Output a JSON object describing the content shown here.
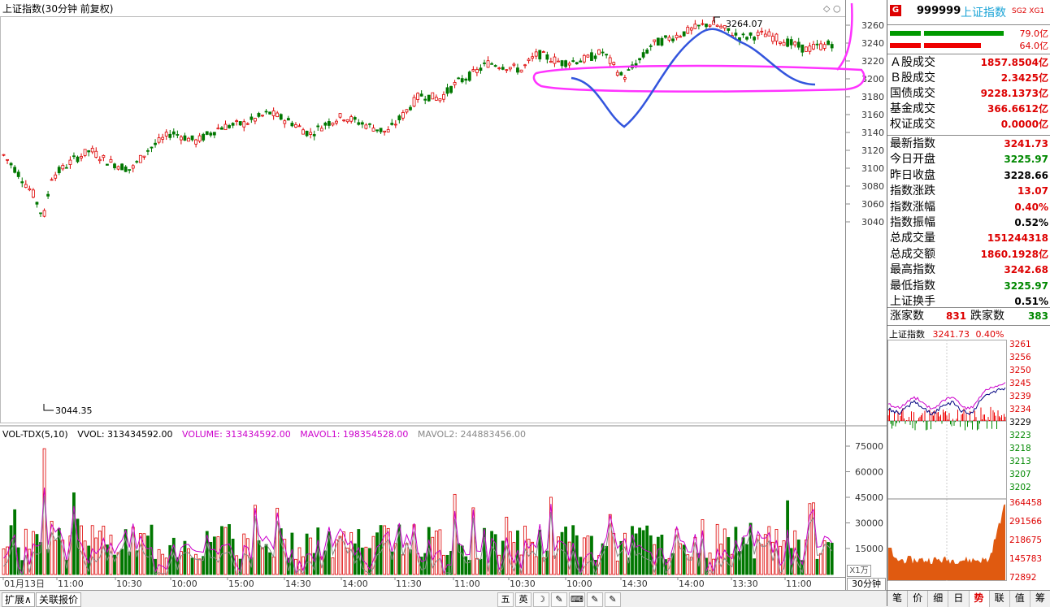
{
  "chart_title": "上证指数(30分钟 前复权)",
  "price_axis": [
    "3260",
    "3240",
    "3220",
    "3200",
    "3180",
    "3160",
    "3140",
    "3120",
    "3100",
    "3080",
    "3060",
    "3040"
  ],
  "vol_axis": [
    "75000",
    "60000",
    "45000",
    "30000",
    "15000"
  ],
  "annotations": {
    "high": "3264.07",
    "low": "3044.35"
  },
  "vol_header": {
    "indicator": "VOL-TDX(5,10)",
    "vvol": "VVOL: 313434592.00",
    "volume": "VOLUME: 313434592.00",
    "mavol1": "MAVOL1: 198354528.00",
    "mavol2": "MAVOL2: 244883456.00"
  },
  "time_labels": [
    "01月13日",
    "11:00",
    "10:30",
    "10:00",
    "15:00",
    "14:30",
    "14:00",
    "11:30",
    "11:00",
    "10:30",
    "10:00",
    "14:30",
    "14:00",
    "13:30",
    "11:00"
  ],
  "scale_unit": "X1万",
  "period": "30分钟",
  "bottom_tabs": {
    "expand": "扩展∧",
    "related": "关联报价"
  },
  "toolbar_icons": [
    "五",
    "英",
    "☽",
    "✎",
    "⌨",
    "✎",
    "✎"
  ],
  "quote": {
    "badge": "G",
    "code": "999999",
    "name": "上证指数",
    "sg": "SG2",
    "xg": "XG1",
    "bar_up_value": "79.0亿",
    "bar_down_value": "64.0亿",
    "volume_rows": [
      {
        "label": "Ａ股成交",
        "value": "1857.8504亿"
      },
      {
        "label": "Ｂ股成交",
        "value": "2.3425亿"
      },
      {
        "label": "国债成交",
        "value": "9228.1373亿"
      },
      {
        "label": "基金成交",
        "value": "366.6612亿"
      },
      {
        "label": "权证成交",
        "value": "0.0000亿"
      }
    ],
    "index_rows": [
      {
        "label": "最新指数",
        "value": "3241.73",
        "color": "red"
      },
      {
        "label": "今日开盘",
        "value": "3225.97",
        "color": "green"
      },
      {
        "label": "昨日收盘",
        "value": "3228.66",
        "color": "black"
      },
      {
        "label": "指数涨跌",
        "value": "13.07",
        "color": "red"
      },
      {
        "label": "指数涨幅",
        "value": "0.40%",
        "color": "red"
      },
      {
        "label": "指数振幅",
        "value": "0.52%",
        "color": "black"
      },
      {
        "label": "总成交量",
        "value": "151244318",
        "color": "red"
      },
      {
        "label": "总成交额",
        "value": "1860.1928亿",
        "color": "red"
      },
      {
        "label": "最高指数",
        "value": "3242.68",
        "color": "red"
      },
      {
        "label": "最低指数",
        "value": "3225.97",
        "color": "green"
      },
      {
        "label": "上证换手",
        "value": "0.51%",
        "color": "black"
      }
    ],
    "rise_label": "涨家数",
    "rise_count": "831",
    "fall_label": "跌家数",
    "fall_count": "383"
  },
  "mini_chart": {
    "title": "上证指数",
    "price": "3241.73",
    "change": "0.40%",
    "price_labels": [
      "3261",
      "3256",
      "3250",
      "3245",
      "3239",
      "3234",
      "3229",
      "3223",
      "3218",
      "3213",
      "3207",
      "3202"
    ],
    "vol_labels": [
      "364458",
      "291566",
      "218675",
      "145783",
      "72892"
    ]
  },
  "right_tabs": [
    "笔",
    "价",
    "细",
    "日",
    "势",
    "联",
    "值",
    "筹"
  ],
  "right_tab_active": "势",
  "colors": {
    "up": "#dd0000",
    "down": "#007700",
    "ma1": "#cc00cc",
    "ma2": "#cc00cc",
    "circle": "#ff33ff",
    "pen": "#3355dd"
  }
}
